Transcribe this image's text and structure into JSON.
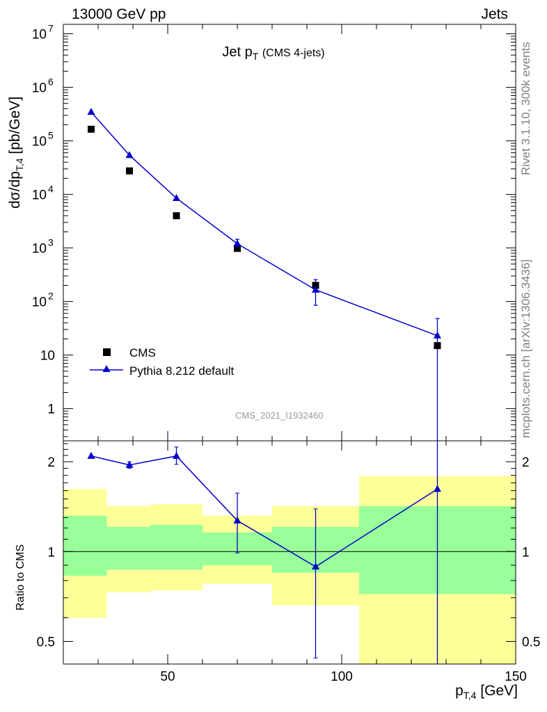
{
  "header": {
    "left": "13000 GeV pp",
    "right": "Jets"
  },
  "side": {
    "rivet": "Rivet 3.1.10,  300k events",
    "mcplots": "mcplots.cern.ch [arXiv:1306.3436]"
  },
  "chart_data": {
    "type": "scatter",
    "title": {
      "main": "Jet p",
      "sub": "T",
      "extra": "(CMS 4-jets)"
    },
    "watermark": "CMS_2021_I1932460",
    "xlabel": {
      "main": "p",
      "sub": "T,4",
      "unit": "[GeV]"
    },
    "ylabel": {
      "pre": "dσ/dp",
      "sub": "T,4",
      "unit": "[pb/GeV]"
    },
    "ratio_ylabel": "Ratio to CMS",
    "xlim": [
      20,
      150
    ],
    "ylim": [
      0.25,
      15000000.0
    ],
    "ratio_ylim": [
      0.42,
      2.35
    ],
    "xticks": [
      {
        "v": 50,
        "label": "50"
      },
      {
        "v": 100,
        "label": "100"
      },
      {
        "v": 150,
        "label": "150"
      }
    ],
    "yticks": [
      {
        "v": 1,
        "label": "1",
        "exp": ""
      },
      {
        "v": 10,
        "label": "10",
        "exp": ""
      },
      {
        "v": 100,
        "label": "10",
        "exp": "2"
      },
      {
        "v": 1000,
        "label": "10",
        "exp": "3"
      },
      {
        "v": 10000,
        "label": "10",
        "exp": "4"
      },
      {
        "v": 100000,
        "label": "10",
        "exp": "5"
      },
      {
        "v": 1000000,
        "label": "10",
        "exp": "6"
      },
      {
        "v": 10000000,
        "label": "10",
        "exp": "7"
      }
    ],
    "ratio_yticks": [
      {
        "v": 0.5,
        "label": "0.5"
      },
      {
        "v": 1,
        "label": "1"
      },
      {
        "v": 2,
        "label": "2"
      }
    ],
    "legend": {
      "position": "bottom-left"
    },
    "bins": [
      {
        "lo": 20,
        "hi": 32.5,
        "x": 28,
        "cms": 165000,
        "pythia": 345000,
        "pythia_err": [
          0,
          0
        ],
        "ratio": 2.09,
        "ratio_err": [
          0,
          0
        ],
        "band_stat": [
          0.83,
          1.32
        ],
        "band_tot": [
          0.6,
          1.62
        ]
      },
      {
        "lo": 32.5,
        "hi": 45,
        "x": 39,
        "cms": 27500,
        "pythia": 54000,
        "pythia_err": [
          0,
          0
        ],
        "ratio": 1.95,
        "ratio_err": [
          0.05,
          0.05
        ],
        "band_stat": [
          0.87,
          1.21
        ],
        "band_tot": [
          0.73,
          1.42
        ]
      },
      {
        "lo": 45,
        "hi": 60,
        "x": 52.5,
        "cms": 4000,
        "pythia": 8500,
        "pythia_err": [
          0,
          0
        ],
        "ratio": 2.09,
        "ratio_err": [
          0.13,
          0.15
        ],
        "band_stat": [
          0.87,
          1.23
        ],
        "band_tot": [
          0.74,
          1.44
        ]
      },
      {
        "lo": 60,
        "hi": 80,
        "x": 70,
        "cms": 980,
        "pythia": 1200,
        "pythia_err": [
          200,
          250
        ],
        "ratio": 1.27,
        "ratio_err": [
          0.28,
          0.3
        ],
        "band_stat": [
          0.9,
          1.16
        ],
        "band_tot": [
          0.78,
          1.32
        ]
      },
      {
        "lo": 80,
        "hi": 105,
        "x": 92.5,
        "cms": 200,
        "pythia": 165,
        "pythia_err": [
          80,
          90
        ],
        "ratio": 0.89,
        "ratio_err": [
          0.45,
          0.5
        ],
        "band_stat": [
          0.85,
          1.21
        ],
        "band_tot": [
          0.66,
          1.42
        ]
      },
      {
        "lo": 105,
        "hi": 150,
        "x": 127.5,
        "cms": 15,
        "pythia": 23,
        "pythia_err": [
          23,
          25
        ],
        "ratio": 1.62,
        "ratio_err": [
          1.3,
          1.7
        ],
        "band_stat": [
          0.72,
          1.42
        ],
        "band_tot": [
          0.41,
          1.79
        ]
      }
    ],
    "series": [
      {
        "name": "CMS",
        "marker": "square",
        "color": "#000000"
      },
      {
        "name": "Pythia 8.212 default",
        "marker": "triangle",
        "color": "#0000cc"
      }
    ],
    "band_colors": {
      "stat": "#99ff99",
      "tot": "#ffff99"
    },
    "ratio_ref": 1
  }
}
